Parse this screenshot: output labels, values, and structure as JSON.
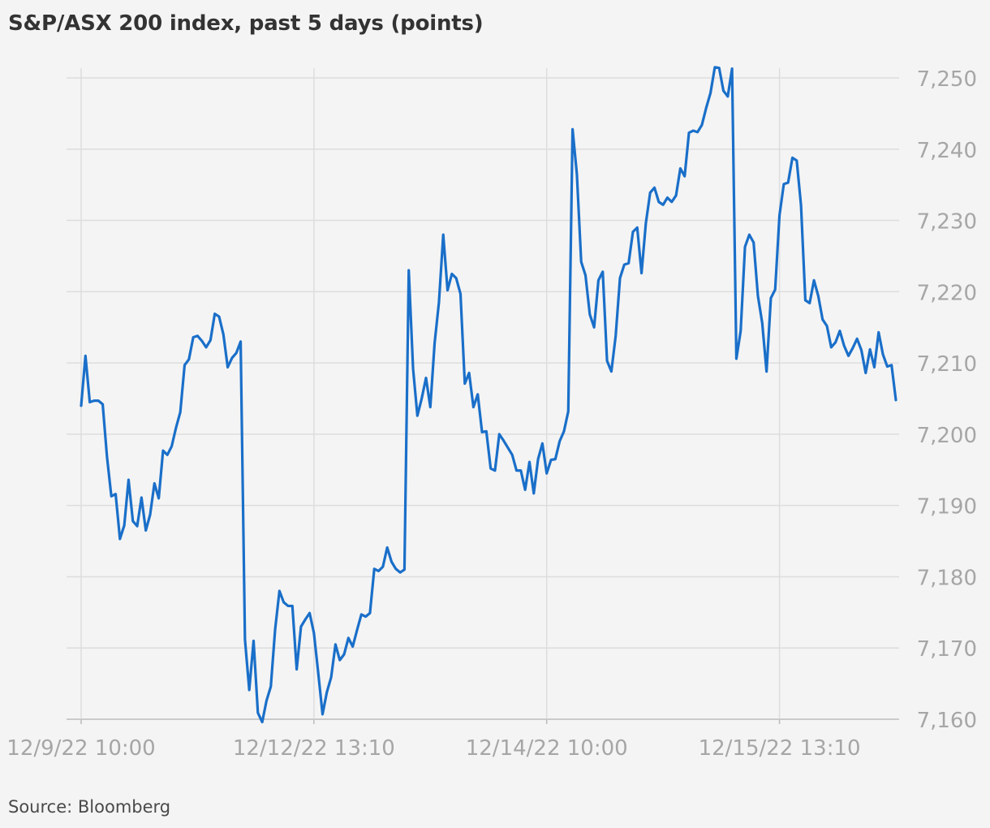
{
  "title": "S&P/ASX 200 index, past 5 days (points)",
  "source": "Source: Bloomberg",
  "colors": {
    "background": "#f4f4f4",
    "line": "#1a6fc9",
    "grid": "#dddddd",
    "baseline": "#bbbbbb",
    "tick_text": "#a6a6a6"
  },
  "chart_data": {
    "type": "line",
    "title": "S&P/ASX 200 index, past 5 days (points)",
    "xlabel": "",
    "ylabel": "",
    "ylim": [
      7160,
      7250
    ],
    "y_ticks": [
      7160,
      7170,
      7180,
      7190,
      7200,
      7210,
      7220,
      7230,
      7240,
      7250
    ],
    "y_tick_labels": [
      "7,160",
      "7,170",
      "7,180",
      "7,190",
      "7,200",
      "7,210",
      "7,220",
      "7,230",
      "7,240",
      "7,250"
    ],
    "y_axis_side": "right",
    "x_ticks": [
      {
        "label": "12/9/22 10:00",
        "index": 0
      },
      {
        "label": "12/12/22 13:10",
        "index": 54
      },
      {
        "label": "12/14/22 10:00",
        "index": 108
      },
      {
        "label": "12/15/22 13:10",
        "index": 162
      }
    ],
    "grid": true,
    "series": [
      {
        "values": [
          7204,
          7211,
          7204.5,
          7204.7,
          7204.7,
          7204.2,
          7196.8,
          7191.3,
          7191.6,
          7185.3,
          7187.2,
          7193.6,
          7187.8,
          7187.1,
          7191.1,
          7186.5,
          7188.7,
          7193.1,
          7191.0,
          7197.7,
          7197.1,
          7198.3,
          7200.9,
          7203.1,
          7209.7,
          7210.5,
          7213.6,
          7213.8,
          7213.1,
          7212.2,
          7213.2,
          7216.9,
          7216.5,
          7214,
          7209.4,
          7210.7,
          7211.4,
          7213.0,
          7171.2,
          7164.1,
          7171.0,
          7160.9,
          7159.6,
          7162.6,
          7164.6,
          7172.6,
          7178.0,
          7176.4,
          7175.9,
          7175.9,
          7167.0,
          7173.0,
          7174.0,
          7174.9,
          7172.1,
          7166.5,
          7160.7,
          7163.8,
          7165.9,
          7170.5,
          7168.3,
          7169.1,
          7171.4,
          7170.2,
          7172.5,
          7174.7,
          7174.4,
          7174.9,
          7181.1,
          7180.8,
          7181.4,
          7184.1,
          7182.1,
          7181.1,
          7180.6,
          7181.0,
          7223.0,
          7209.2,
          7202.6,
          7205.0,
          7207.9,
          7203.8,
          7212.8,
          7218.5,
          7228.0,
          7220.2,
          7222.5,
          7221.9,
          7219.7,
          7207.1,
          7208.6,
          7203.8,
          7205.6,
          7200.3,
          7200.4,
          7195.2,
          7194.9,
          7200.0,
          7199.1,
          7198.1,
          7197.1,
          7194.9,
          7194.9,
          7192.2,
          7196.1,
          7191.7,
          7196.5,
          7198.7,
          7194.5,
          7196.4,
          7196.5,
          7199.0,
          7200.4,
          7203.2,
          7242.8,
          7236.5,
          7224.2,
          7222.3,
          7216.8,
          7215.0,
          7221.6,
          7222.8,
          7210.3,
          7208.8,
          7213.8,
          7221.9,
          7223.8,
          7224,
          7228.4,
          7229.0,
          7222.6,
          7229.6,
          7233.9,
          7234.6,
          7232.6,
          7232.2,
          7233.2,
          7232.6,
          7233.5,
          7237.3,
          7236.2,
          7242.3,
          7242.6,
          7242.4,
          7243.4,
          7245.8,
          7247.9,
          7251.5,
          7251.4,
          7248.2,
          7247.4,
          7251.3,
          7210.6,
          7214.5,
          7226.3,
          7228.0,
          7226.9,
          7219.4,
          7215.6,
          7208.8,
          7219.1,
          7220.3,
          7230.7,
          7235.1,
          7235.3,
          7238.8,
          7238.4,
          7232.1,
          7218.8,
          7218.4,
          7221.6,
          7219.4,
          7216.1,
          7215.2,
          7212.2,
          7212.9,
          7214.5,
          7212.4,
          7211.0,
          7212.1,
          7213.4,
          7211.8,
          7208.6,
          7211.9,
          7209.4,
          7214.3,
          7211.2,
          7209.5,
          7209.7,
          7204.8
        ]
      }
    ]
  }
}
